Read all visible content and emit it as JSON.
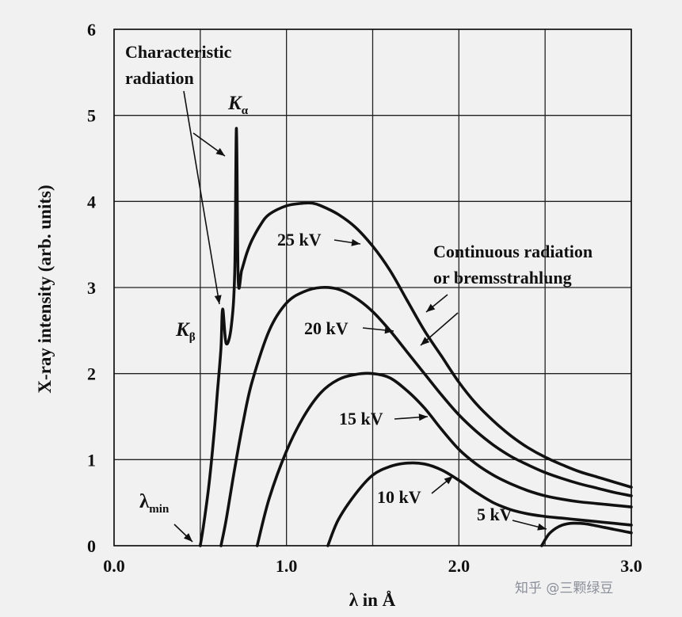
{
  "chart_data": {
    "type": "line",
    "title": "",
    "xlabel": "λ in Å",
    "ylabel": "X-ray intensity (arb. units)",
    "xlim": [
      0.0,
      3.0
    ],
    "ylim": [
      0,
      6
    ],
    "xticks": [
      "0.0",
      "1.0",
      "2.0",
      "3.0"
    ],
    "yticks": [
      "0",
      "1",
      "2",
      "3",
      "4",
      "5",
      "6"
    ],
    "grid": true,
    "series": [
      {
        "name": "25 kV",
        "x": [
          0.5,
          0.52,
          0.55,
          0.58,
          0.6,
          0.62,
          0.63,
          0.65,
          0.68,
          0.7,
          0.71,
          0.72,
          0.74,
          0.77,
          0.8,
          0.85,
          0.9,
          1.0,
          1.1,
          1.15,
          1.2,
          1.3,
          1.4,
          1.5,
          1.6,
          1.7,
          1.8,
          1.9,
          2.0,
          2.1,
          2.2,
          2.3,
          2.4,
          2.5,
          2.6,
          2.7,
          2.8,
          2.9,
          3.0
        ],
        "y": [
          0.0,
          0.25,
          0.7,
          1.3,
          1.8,
          2.3,
          2.75,
          2.35,
          2.55,
          3.2,
          4.85,
          3.1,
          3.2,
          3.4,
          3.55,
          3.73,
          3.85,
          3.95,
          3.98,
          3.98,
          3.95,
          3.85,
          3.7,
          3.48,
          3.2,
          2.85,
          2.5,
          2.2,
          1.9,
          1.65,
          1.45,
          1.28,
          1.14,
          1.03,
          0.94,
          0.86,
          0.8,
          0.74,
          0.68
        ]
      },
      {
        "name": "20 kV",
        "x": [
          0.62,
          0.65,
          0.7,
          0.75,
          0.8,
          0.9,
          1.0,
          1.1,
          1.2,
          1.3,
          1.4,
          1.5,
          1.6,
          1.7,
          1.8,
          1.9,
          2.0,
          2.1,
          2.2,
          2.3,
          2.4,
          2.5,
          2.6,
          2.7,
          2.8,
          2.9,
          3.0
        ],
        "y": [
          0.0,
          0.3,
          0.9,
          1.45,
          1.9,
          2.5,
          2.82,
          2.95,
          3.0,
          2.98,
          2.88,
          2.72,
          2.5,
          2.25,
          2.0,
          1.75,
          1.52,
          1.33,
          1.17,
          1.04,
          0.94,
          0.85,
          0.78,
          0.72,
          0.67,
          0.62,
          0.58
        ]
      },
      {
        "name": "15 kV",
        "x": [
          0.83,
          0.9,
          1.0,
          1.1,
          1.2,
          1.3,
          1.4,
          1.5,
          1.6,
          1.7,
          1.8,
          1.9,
          2.0,
          2.1,
          2.2,
          2.3,
          2.4,
          2.5,
          2.6,
          2.7,
          2.8,
          2.9,
          3.0
        ],
        "y": [
          0.0,
          0.55,
          1.1,
          1.5,
          1.78,
          1.93,
          1.99,
          2.0,
          1.95,
          1.8,
          1.6,
          1.35,
          1.12,
          0.95,
          0.82,
          0.72,
          0.64,
          0.58,
          0.54,
          0.51,
          0.49,
          0.47,
          0.45
        ]
      },
      {
        "name": "10 kV",
        "x": [
          1.24,
          1.3,
          1.4,
          1.5,
          1.6,
          1.7,
          1.8,
          1.9,
          2.0,
          2.1,
          2.2,
          2.3,
          2.4,
          2.5,
          2.6,
          2.7,
          2.8,
          2.9,
          3.0
        ],
        "y": [
          0.0,
          0.3,
          0.6,
          0.82,
          0.92,
          0.96,
          0.95,
          0.88,
          0.76,
          0.62,
          0.5,
          0.42,
          0.37,
          0.34,
          0.32,
          0.3,
          0.28,
          0.26,
          0.24
        ]
      },
      {
        "name": "5 kV",
        "x": [
          2.48,
          2.52,
          2.56,
          2.6,
          2.65,
          2.7,
          2.75,
          2.8,
          2.85,
          2.9,
          2.95,
          3.0
        ],
        "y": [
          0.0,
          0.13,
          0.2,
          0.24,
          0.26,
          0.26,
          0.25,
          0.23,
          0.21,
          0.19,
          0.17,
          0.15
        ]
      }
    ],
    "annotations": {
      "characteristic_line1": "Characteristic",
      "characteristic_line2": "radiation",
      "k_alpha_letter": "K",
      "k_alpha_sub": "α",
      "k_beta_letter": "K",
      "k_beta_sub": "β",
      "lambda_min_letter": "λ",
      "lambda_min_sub": "min",
      "continuous_line1": "Continuous radiation",
      "continuous_line2": "or bremsstrahlung"
    },
    "watermark": "知乎 @三颗绿豆"
  }
}
